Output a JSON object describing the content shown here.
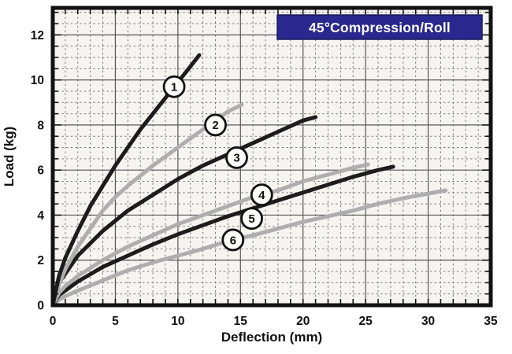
{
  "title_box": {
    "text": "45°Compression/Roll",
    "bg_color": "#29288e",
    "border_color": "#17165c",
    "text_color": "#ffffff"
  },
  "colors": {
    "black_curve": "#1c1c1c",
    "gray_curve": "#aeaeae",
    "major_grid": "#565656",
    "minor_grid": "#7c7c7c",
    "frame": "#121212",
    "plot_bg": "#f5f4f0",
    "circle_fill": "#fcfcfb"
  },
  "chart_data": {
    "type": "line",
    "title": "45°Compression/Roll",
    "xlabel": "Deflection (mm)",
    "ylabel": "Load (kg)",
    "xlim": [
      0,
      35
    ],
    "ylim": [
      0,
      13.2
    ],
    "x_major_step": 5,
    "x_minor_step": 1,
    "y_major_step": 2,
    "y_minor_step": 0.5,
    "x_tick_labels": [
      "0",
      "5",
      "10",
      "15",
      "20",
      "25",
      "30",
      "35"
    ],
    "y_tick_labels": [
      "0",
      "2",
      "4",
      "6",
      "8",
      "10",
      "12"
    ],
    "grid": "major solid, minor dashed (dotted scan style)",
    "legend": "numbered circles placed on each curve",
    "series": [
      {
        "name": "1",
        "color": "black",
        "label_at": [
          9.7,
          9.7
        ],
        "points": [
          [
            0,
            0
          ],
          [
            0.5,
            1.3
          ],
          [
            1,
            2.1
          ],
          [
            2,
            3.3
          ],
          [
            3,
            4.4
          ],
          [
            4,
            5.3
          ],
          [
            5,
            6.2
          ],
          [
            6,
            7.0
          ],
          [
            7,
            7.8
          ],
          [
            8,
            8.5
          ],
          [
            9,
            9.2
          ],
          [
            10,
            9.9
          ],
          [
            11,
            10.6
          ],
          [
            11.7,
            11.1
          ]
        ]
      },
      {
        "name": "2",
        "color": "gray",
        "label_at": [
          13.0,
          8.0
        ],
        "points": [
          [
            0,
            0
          ],
          [
            0.5,
            0.9
          ],
          [
            1,
            1.6
          ],
          [
            2,
            2.6
          ],
          [
            3,
            3.4
          ],
          [
            4,
            4.2
          ],
          [
            5,
            4.8
          ],
          [
            6,
            5.3
          ],
          [
            8,
            6.2
          ],
          [
            10,
            7.0
          ],
          [
            12,
            7.8
          ],
          [
            14,
            8.6
          ],
          [
            15.1,
            8.9
          ]
        ]
      },
      {
        "name": "3",
        "color": "black",
        "label_at": [
          14.7,
          6.55
        ],
        "points": [
          [
            0,
            0
          ],
          [
            0.5,
            1.0
          ],
          [
            1,
            1.4
          ],
          [
            2,
            2.2
          ],
          [
            4,
            3.3
          ],
          [
            6,
            4.2
          ],
          [
            8,
            4.9
          ],
          [
            10,
            5.6
          ],
          [
            12,
            6.2
          ],
          [
            14,
            6.7
          ],
          [
            16,
            7.2
          ],
          [
            18,
            7.7
          ],
          [
            20,
            8.2
          ],
          [
            21,
            8.35
          ]
        ]
      },
      {
        "name": "4",
        "color": "gray",
        "label_at": [
          16.7,
          4.9
        ],
        "points": [
          [
            0,
            0
          ],
          [
            0.5,
            0.55
          ],
          [
            1,
            0.85
          ],
          [
            2,
            1.3
          ],
          [
            4,
            2.0
          ],
          [
            6,
            2.6
          ],
          [
            8,
            3.1
          ],
          [
            10,
            3.6
          ],
          [
            12,
            4.0
          ],
          [
            14,
            4.4
          ],
          [
            16,
            4.8
          ],
          [
            18,
            5.1
          ],
          [
            20,
            5.5
          ],
          [
            22,
            5.8
          ],
          [
            24,
            6.1
          ],
          [
            25.2,
            6.25
          ]
        ]
      },
      {
        "name": "5",
        "color": "black",
        "label_at": [
          15.9,
          3.85
        ],
        "points": [
          [
            0,
            0
          ],
          [
            0.5,
            0.45
          ],
          [
            1,
            0.65
          ],
          [
            2,
            1.05
          ],
          [
            4,
            1.7
          ],
          [
            6,
            2.2
          ],
          [
            8,
            2.7
          ],
          [
            10,
            3.15
          ],
          [
            12,
            3.55
          ],
          [
            14,
            3.95
          ],
          [
            16,
            4.3
          ],
          [
            18,
            4.65
          ],
          [
            20,
            5.0
          ],
          [
            22,
            5.35
          ],
          [
            24,
            5.7
          ],
          [
            26,
            6.0
          ],
          [
            27.2,
            6.15
          ]
        ]
      },
      {
        "name": "6",
        "color": "gray",
        "label_at": [
          14.4,
          2.9
        ],
        "points": [
          [
            0,
            0
          ],
          [
            0.5,
            0.25
          ],
          [
            1,
            0.4
          ],
          [
            2,
            0.65
          ],
          [
            4,
            1.1
          ],
          [
            6,
            1.55
          ],
          [
            8,
            1.9
          ],
          [
            10,
            2.2
          ],
          [
            12,
            2.5
          ],
          [
            14,
            2.85
          ],
          [
            16,
            3.1
          ],
          [
            18,
            3.4
          ],
          [
            20,
            3.7
          ],
          [
            22,
            3.95
          ],
          [
            24,
            4.2
          ],
          [
            26,
            4.5
          ],
          [
            28,
            4.75
          ],
          [
            31.4,
            5.1
          ]
        ]
      }
    ]
  }
}
